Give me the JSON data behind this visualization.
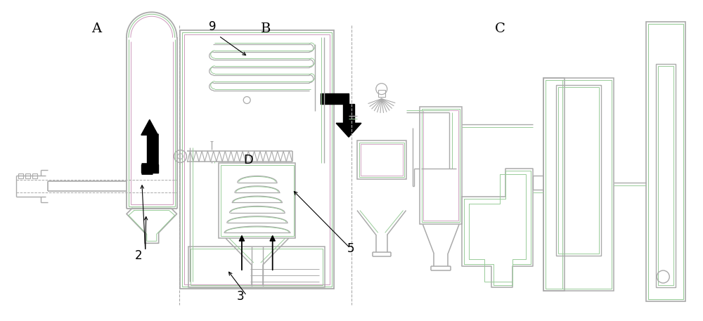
{
  "bg_color": "#ffffff",
  "lc": "#aaaaaa",
  "gc": "#99cc99",
  "pc": "#cc99bb",
  "bc": "#000000",
  "label_A": "A",
  "label_B": "B",
  "label_C": "C",
  "label_D": "D",
  "label_2": "2",
  "label_3": "3",
  "label_5": "5",
  "label_9": "9"
}
